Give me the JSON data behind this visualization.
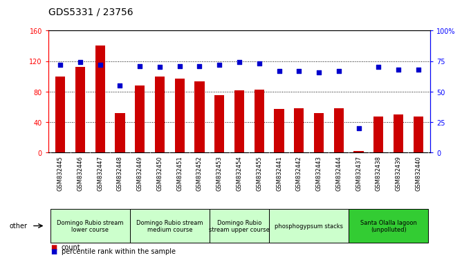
{
  "title": "GDS5331 / 23756",
  "samples": [
    "GSM832445",
    "GSM832446",
    "GSM832447",
    "GSM832448",
    "GSM832449",
    "GSM832450",
    "GSM832451",
    "GSM832452",
    "GSM832453",
    "GSM832454",
    "GSM832455",
    "GSM832441",
    "GSM832442",
    "GSM832443",
    "GSM832444",
    "GSM832437",
    "GSM832438",
    "GSM832439",
    "GSM832440"
  ],
  "counts": [
    100,
    112,
    140,
    52,
    88,
    100,
    97,
    93,
    75,
    82,
    83,
    57,
    58,
    52,
    58,
    2,
    47,
    50,
    47
  ],
  "percentiles": [
    72,
    74,
    72,
    55,
    71,
    70,
    71,
    71,
    72,
    74,
    73,
    67,
    67,
    66,
    67,
    20,
    70,
    68,
    68
  ],
  "bar_color": "#cc0000",
  "dot_color": "#0000cc",
  "ylim_left": [
    0,
    160
  ],
  "ylim_right": [
    0,
    100
  ],
  "yticks_left": [
    0,
    40,
    80,
    120,
    160
  ],
  "yticks_right": [
    0,
    25,
    50,
    75,
    100
  ],
  "groups": [
    {
      "label": "Domingo Rubio stream\nlower course",
      "start": 0,
      "end": 3
    },
    {
      "label": "Domingo Rubio stream\nmedium course",
      "start": 4,
      "end": 7
    },
    {
      "label": "Domingo Rubio\nstream upper course",
      "start": 8,
      "end": 10
    },
    {
      "label": "phosphogypsum stacks",
      "start": 11,
      "end": 14
    },
    {
      "label": "Santa Olalla lagoon\n(unpolluted)",
      "start": 15,
      "end": 18
    }
  ],
  "group_colors": [
    "#ccffcc",
    "#ccffcc",
    "#ccffcc",
    "#ccffcc",
    "#33cc33"
  ],
  "other_label": "other",
  "legend_count_label": "count",
  "legend_pct_label": "percentile rank within the sample",
  "tick_bg_color": "#cccccc",
  "spine_top_color": "#000000"
}
